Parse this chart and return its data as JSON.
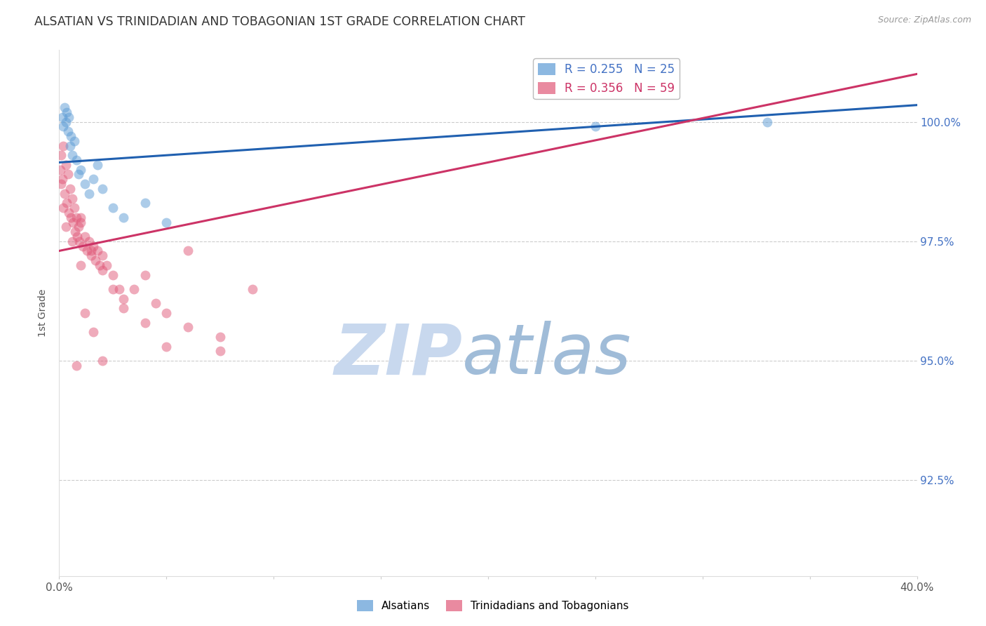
{
  "title": "ALSATIAN VS TRINIDADIAN AND TOBAGONIAN 1ST GRADE CORRELATION CHART",
  "source": "Source: ZipAtlas.com",
  "ylabel": "1st Grade",
  "xlim": [
    0.0,
    40.0
  ],
  "ylim": [
    90.5,
    101.5
  ],
  "yticks": [
    92.5,
    95.0,
    97.5,
    100.0
  ],
  "ytick_labels": [
    "92.5%",
    "95.0%",
    "97.5%",
    "100.0%"
  ],
  "xticks": [
    0.0,
    5.0,
    10.0,
    15.0,
    20.0,
    25.0,
    30.0,
    35.0,
    40.0
  ],
  "xtick_labels": [
    "0.0%",
    "",
    "",
    "",
    "",
    "",
    "",
    "",
    "40.0%"
  ],
  "legend_r_entries": [
    {
      "label": "R = 0.255",
      "n_label": "N = 25",
      "color": "#5b9bd5"
    },
    {
      "label": "R = 0.356",
      "n_label": "N = 59",
      "color": "#e05878"
    }
  ],
  "blue_scatter_x": [
    0.15,
    0.2,
    0.25,
    0.3,
    0.35,
    0.4,
    0.45,
    0.5,
    0.55,
    0.6,
    0.7,
    0.8,
    0.9,
    1.0,
    1.2,
    1.4,
    1.6,
    1.8,
    2.0,
    2.5,
    3.0,
    4.0,
    5.0,
    25.0,
    33.0
  ],
  "blue_scatter_y": [
    100.1,
    99.9,
    100.3,
    100.0,
    100.2,
    99.8,
    100.1,
    99.5,
    99.7,
    99.3,
    99.6,
    99.2,
    98.9,
    99.0,
    98.7,
    98.5,
    98.8,
    99.1,
    98.6,
    98.2,
    98.0,
    98.3,
    97.9,
    99.9,
    100.0
  ],
  "pink_scatter_x": [
    0.05,
    0.1,
    0.15,
    0.2,
    0.25,
    0.3,
    0.35,
    0.4,
    0.45,
    0.5,
    0.55,
    0.6,
    0.65,
    0.7,
    0.75,
    0.8,
    0.85,
    0.9,
    0.95,
    1.0,
    1.1,
    1.2,
    1.3,
    1.4,
    1.5,
    1.6,
    1.7,
    1.8,
    1.9,
    2.0,
    2.2,
    2.5,
    2.8,
    3.0,
    3.5,
    4.0,
    4.5,
    5.0,
    6.0,
    7.5,
    9.0,
    0.1,
    0.2,
    0.3,
    1.0,
    1.5,
    2.0,
    2.5,
    3.0,
    4.0,
    5.0,
    6.0,
    2.0,
    7.5,
    0.8,
    1.2,
    1.6,
    1.0,
    0.6
  ],
  "pink_scatter_y": [
    99.0,
    99.3,
    98.8,
    99.5,
    98.5,
    99.1,
    98.3,
    98.9,
    98.1,
    98.6,
    98.0,
    98.4,
    97.9,
    98.2,
    97.7,
    98.0,
    97.6,
    97.8,
    97.5,
    97.9,
    97.4,
    97.6,
    97.3,
    97.5,
    97.2,
    97.4,
    97.1,
    97.3,
    97.0,
    97.2,
    97.0,
    96.8,
    96.5,
    96.3,
    96.5,
    96.8,
    96.2,
    96.0,
    97.3,
    95.5,
    96.5,
    98.7,
    98.2,
    97.8,
    98.0,
    97.3,
    96.9,
    96.5,
    96.1,
    95.8,
    95.3,
    95.7,
    95.0,
    95.2,
    94.9,
    96.0,
    95.6,
    97.0,
    97.5
  ],
  "blue_line_x0": 0.0,
  "blue_line_y0": 99.15,
  "blue_line_x1": 40.0,
  "blue_line_y1": 100.35,
  "pink_line_x0": 0.0,
  "pink_line_y0": 97.3,
  "pink_line_x1": 40.0,
  "pink_line_y1": 101.0,
  "blue_scatter_color": "#5b9bd5",
  "pink_scatter_color": "#e05878",
  "blue_line_color": "#2060b0",
  "pink_line_color": "#cc3366",
  "scatter_alpha": 0.5,
  "scatter_size": 100,
  "watermark_zip_color": "#c8d8ee",
  "watermark_atlas_color": "#a0bcd8",
  "background_color": "#ffffff",
  "grid_color": "#cccccc",
  "title_color": "#333333",
  "right_tick_color": "#4472c4",
  "source_color": "#999999"
}
